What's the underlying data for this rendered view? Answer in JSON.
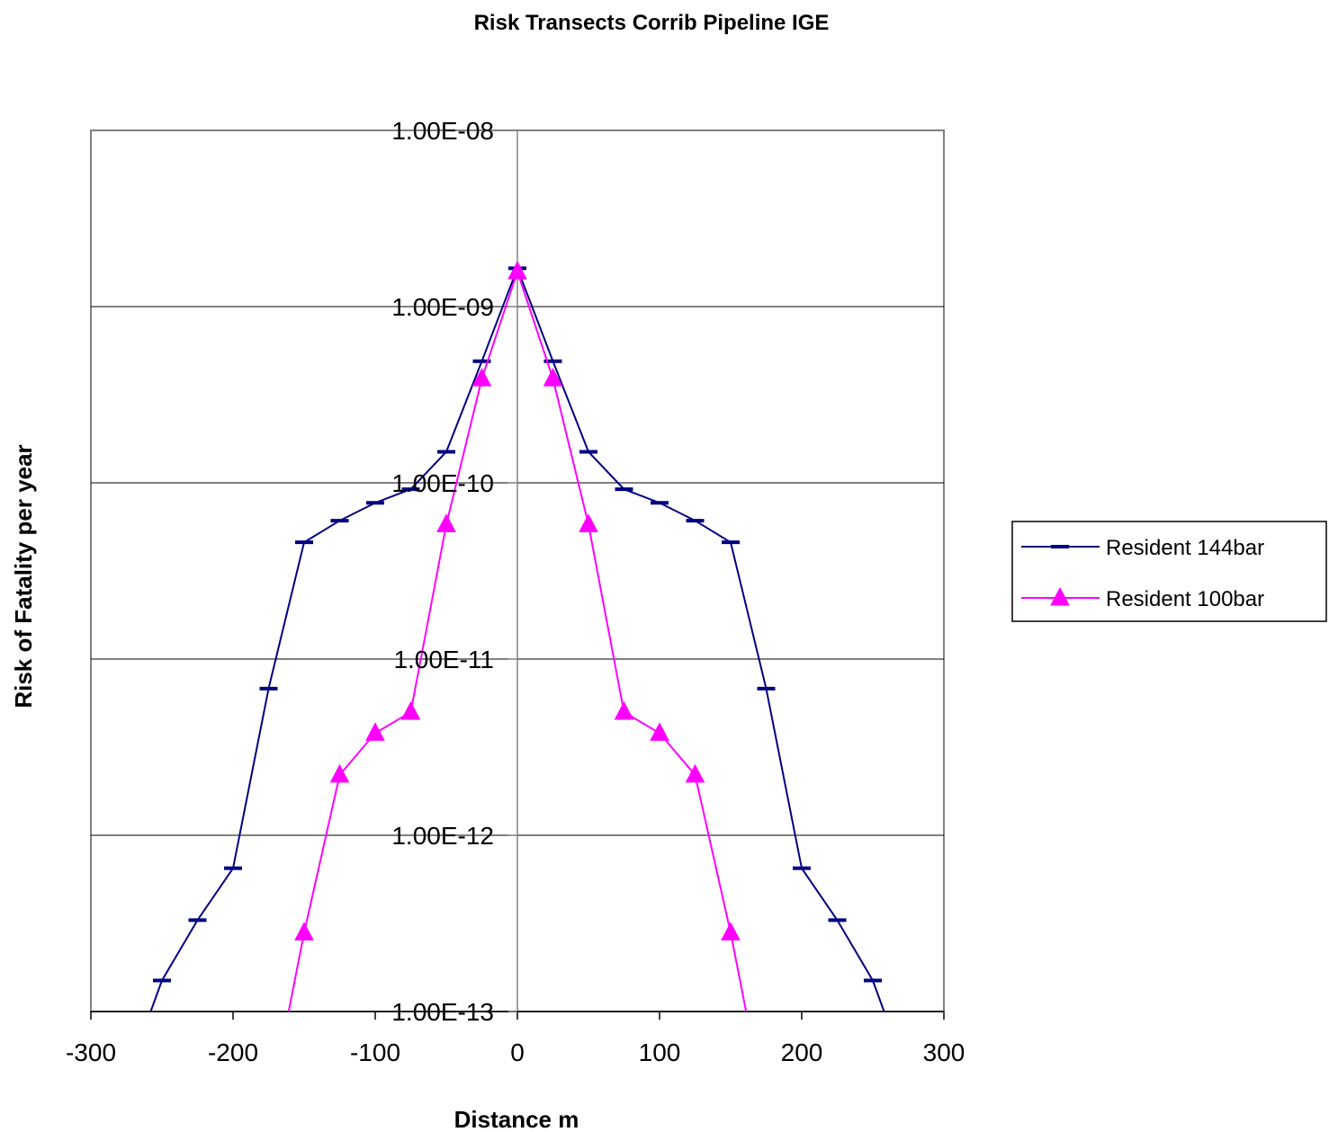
{
  "chart_data": {
    "type": "line",
    "title": "Risk Transects Corrib Pipeline IGE",
    "xlabel": "Distance m",
    "ylabel": "Risk of Fatality per year",
    "xlim": [
      -300,
      300
    ],
    "ylim": [
      1e-13,
      1e-08
    ],
    "yscale": "log",
    "x_ticks": [
      "-300",
      "-200",
      "-100",
      "0",
      "100",
      "200",
      "300"
    ],
    "y_ticks": [
      "1.00E-08",
      "1.00E-09",
      "1.00E-10",
      "1.00E-11",
      "1.00E-12",
      "1.00E-13"
    ],
    "grid": "horizontal major gridlines",
    "legend_position": "right",
    "series": [
      {
        "name": "Resident 144bar",
        "color": "#000080",
        "marker": "dash",
        "points": [
          [
            -260,
            9e-14
          ],
          [
            -250,
            1.5e-13
          ],
          [
            -225,
            3.3e-13
          ],
          [
            -200,
            6.5e-13
          ],
          [
            -175,
            6.8e-12
          ],
          [
            -150,
            4.6e-11
          ],
          [
            -125,
            6.1e-11
          ],
          [
            -100,
            7.7e-11
          ],
          [
            -75,
            9.2e-11
          ],
          [
            -50,
            1.5e-10
          ],
          [
            -25,
            4.9e-10
          ],
          [
            0,
            1.65e-09
          ],
          [
            25,
            4.9e-10
          ],
          [
            50,
            1.5e-10
          ],
          [
            75,
            9.2e-11
          ],
          [
            100,
            7.7e-11
          ],
          [
            125,
            6.1e-11
          ],
          [
            150,
            4.6e-11
          ],
          [
            175,
            6.8e-12
          ],
          [
            200,
            6.5e-13
          ],
          [
            225,
            3.3e-13
          ],
          [
            250,
            1.5e-13
          ],
          [
            260,
            9e-14
          ]
        ]
      },
      {
        "name": "Resident 100bar",
        "color": "#ff00ff",
        "marker": "triangle",
        "points": [
          [
            -162,
            9e-14
          ],
          [
            -150,
            2.8e-13
          ],
          [
            -125,
            2.2e-12
          ],
          [
            -100,
            3.8e-12
          ],
          [
            -75,
            5e-12
          ],
          [
            -50,
            5.8e-11
          ],
          [
            -25,
            3.9e-10
          ],
          [
            0,
            1.58e-09
          ],
          [
            25,
            3.9e-10
          ],
          [
            50,
            5.8e-11
          ],
          [
            75,
            5e-12
          ],
          [
            100,
            3.8e-12
          ],
          [
            125,
            2.2e-12
          ],
          [
            150,
            2.8e-13
          ],
          [
            162,
            9e-14
          ]
        ]
      }
    ]
  }
}
